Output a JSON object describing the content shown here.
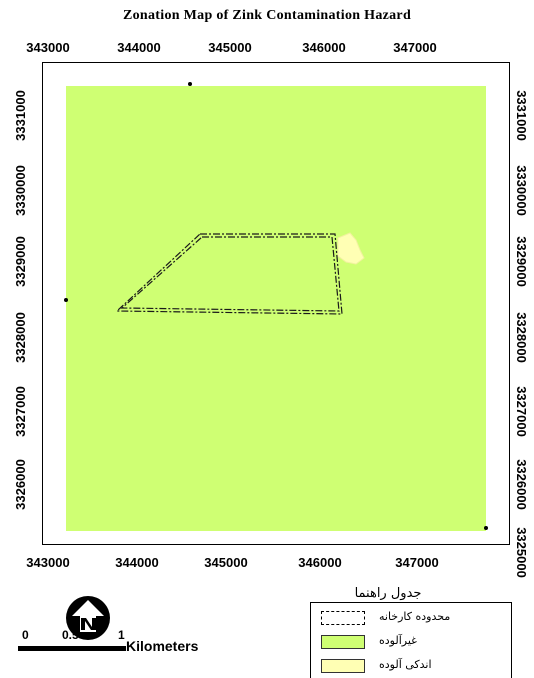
{
  "title": "Zonation Map of  Zink  Contamination Hazard",
  "x_ticks_top": [
    "343000",
    "344000",
    "345000",
    "346000",
    "347000"
  ],
  "x_ticks_bottom": [
    "343000",
    "344000",
    "345000",
    "346000",
    "347000"
  ],
  "y_ticks_left": [
    "3331000",
    "3330000",
    "3329000",
    "3328000",
    "3327000",
    "3326000"
  ],
  "y_ticks_right": [
    "3331000",
    "3330000",
    "3329000",
    "3328000",
    "3327000",
    "3326000",
    "3325000"
  ],
  "legend": {
    "title": "جدول راهنما",
    "items": [
      {
        "label": "محدوده کارخانه",
        "style": "dashed-outline",
        "color": "#ffffff"
      },
      {
        "label": "غیرآلوده",
        "style": "fill",
        "color": "#cfff73"
      },
      {
        "label": "اندکی آلوده",
        "style": "fill",
        "color": "#ffffb4"
      }
    ]
  },
  "colors": {
    "non_contaminated": "#cfff73",
    "slightly_contaminated": "#ffffb4",
    "factory_boundary": "#000000"
  },
  "scale_bar": {
    "labels": [
      "0",
      "0.5",
      "1"
    ],
    "unit": "Kilometers"
  },
  "north_arrow": {
    "label": "N",
    "icon": "north-arrow-icon"
  }
}
